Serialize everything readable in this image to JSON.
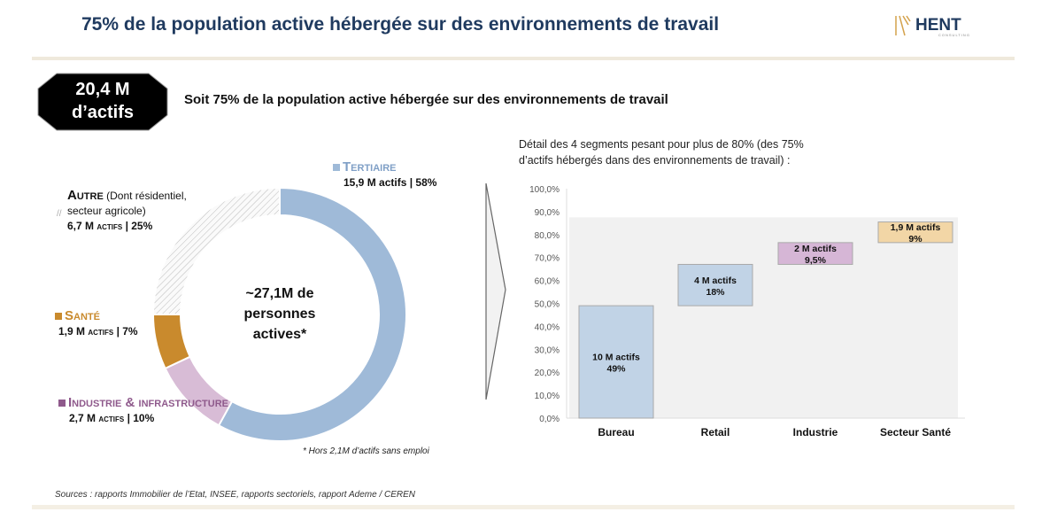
{
  "title": "75% de la population active hébergée sur des environnements de travail",
  "logo": {
    "text": "HENT",
    "subtext": "CONSULTING",
    "color": "#1f3a5f",
    "accent": "#d4a24c"
  },
  "badge": {
    "line1": "20,4 M",
    "line2": "d’actifs"
  },
  "subtitle": "Soit 75% de la population active hébergée sur des environnements de travail",
  "detail": "Détail des 4 segments pesant pour plus de 80% (des 75% d’actifs hébergés dans des environnements de travail) :",
  "note": "* Hors 2,1M d’actifs sans emploi",
  "sources": "Sources : rapports Immobilier de l’Etat, INSEE, rapports sectoriels, rapport Ademe / CEREN",
  "chart_data": [
    {
      "type": "pie",
      "donut": true,
      "center_text": [
        "~27,1M de",
        "personnes",
        "actives*"
      ],
      "slices": [
        {
          "name": "Tertiaire",
          "detail": "15,9 M actifs | 58%",
          "value": 58,
          "color": "#9fbad8"
        },
        {
          "name": "Industrie & infrastructure",
          "detail": "2,7 M actifs | 10%",
          "value": 10,
          "color": "#d8bcd6"
        },
        {
          "name": "Santé",
          "detail": "1,9 M actifs | 7%",
          "value": 7,
          "color": "#c98a2d"
        },
        {
          "name": "Autre",
          "name_extra": "(Dont résidentiel, secteur agricole)",
          "detail": "6,7 M actifs | 25%",
          "value": 25,
          "color": "hatched"
        }
      ]
    },
    {
      "type": "bar",
      "waterfall": true,
      "categories": [
        "Bureau",
        "Retail",
        "Industrie",
        "Secteur Santé"
      ],
      "values": [
        49,
        18,
        9.5,
        9
      ],
      "labels": [
        [
          "10 M actifs",
          "49%"
        ],
        [
          "4 M actifs",
          "18%"
        ],
        [
          "2 M actifs",
          "9,5%"
        ],
        [
          "1,9 M actifs",
          "9%"
        ]
      ],
      "colors": [
        "#c1d3e6",
        "#c1d3e6",
        "#d6b6d6",
        "#f2d6a6"
      ],
      "ylim": [
        0,
        100
      ],
      "yticks": [
        "0,0%",
        "10,0%",
        "20,0%",
        "30,0%",
        "40,0%",
        "50,0%",
        "60,0%",
        "70,0%",
        "80,0%",
        "90,0%",
        "100,0%"
      ]
    }
  ]
}
